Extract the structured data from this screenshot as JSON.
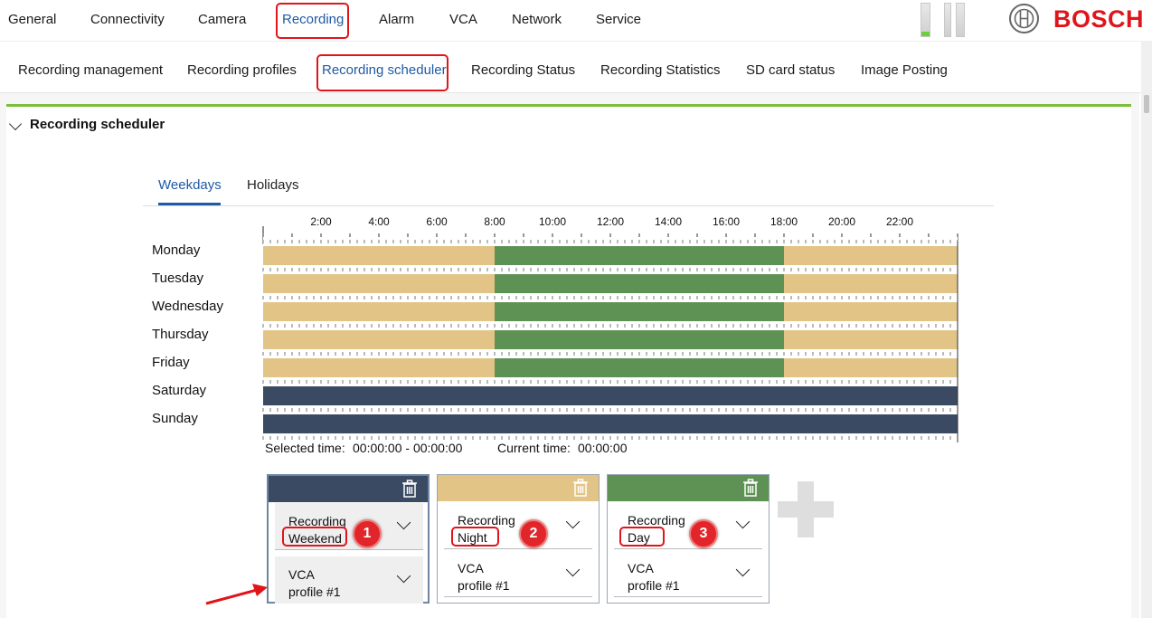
{
  "topnav": {
    "items": [
      "General",
      "Connectivity",
      "Camera",
      "Recording",
      "Alarm",
      "VCA",
      "Network",
      "Service"
    ],
    "active": "Recording"
  },
  "brand": {
    "name": "BOSCH",
    "color": "#e0151b"
  },
  "subnav": {
    "items": [
      "Recording management",
      "Recording profiles",
      "Recording scheduler",
      "Recording Status",
      "Recording Statistics",
      "SD card status",
      "Image Posting"
    ],
    "active": "Recording scheduler"
  },
  "section": {
    "title": "Recording scheduler"
  },
  "tabs": {
    "items": [
      "Weekdays",
      "Holidays"
    ],
    "active": "Weekdays"
  },
  "schedule": {
    "time_labels": [
      "2:00",
      "4:00",
      "6:00",
      "8:00",
      "10:00",
      "12:00",
      "14:00",
      "16:00",
      "18:00",
      "20:00",
      "22:00"
    ],
    "days": [
      {
        "name": "Monday",
        "segments": [
          {
            "start": 0,
            "end": 8,
            "profile": "night"
          },
          {
            "start": 8,
            "end": 18,
            "profile": "day"
          },
          {
            "start": 18,
            "end": 24,
            "profile": "night"
          }
        ]
      },
      {
        "name": "Tuesday",
        "segments": [
          {
            "start": 0,
            "end": 8,
            "profile": "night"
          },
          {
            "start": 8,
            "end": 18,
            "profile": "day"
          },
          {
            "start": 18,
            "end": 24,
            "profile": "night"
          }
        ]
      },
      {
        "name": "Wednesday",
        "segments": [
          {
            "start": 0,
            "end": 8,
            "profile": "night"
          },
          {
            "start": 8,
            "end": 18,
            "profile": "day"
          },
          {
            "start": 18,
            "end": 24,
            "profile": "night"
          }
        ]
      },
      {
        "name": "Thursday",
        "segments": [
          {
            "start": 0,
            "end": 8,
            "profile": "night"
          },
          {
            "start": 8,
            "end": 18,
            "profile": "day"
          },
          {
            "start": 18,
            "end": 24,
            "profile": "night"
          }
        ]
      },
      {
        "name": "Friday",
        "segments": [
          {
            "start": 0,
            "end": 8,
            "profile": "night"
          },
          {
            "start": 8,
            "end": 18,
            "profile": "day"
          },
          {
            "start": 18,
            "end": 24,
            "profile": "night"
          }
        ]
      },
      {
        "name": "Saturday",
        "segments": [
          {
            "start": 0,
            "end": 24,
            "profile": "weekend"
          }
        ]
      },
      {
        "name": "Sunday",
        "segments": [
          {
            "start": 0,
            "end": 24,
            "profile": "weekend"
          }
        ]
      }
    ],
    "selected_time_label": "Selected time:",
    "selected_time_value": "00:00:00 - 00:00:00",
    "current_time_label": "Current time:",
    "current_time_value": "00:00:00"
  },
  "colors": {
    "weekend": "#3a4a63",
    "night": "#e2c487",
    "day": "#5e9154",
    "accent": "#1f5aa6",
    "section_bar": "#7bbf3a"
  },
  "profiles": [
    {
      "key": "weekend",
      "badge": "1",
      "recording_label": "Recording",
      "recording_value": "Weekend",
      "vca_label": "VCA",
      "vca_value": "profile #1",
      "icon": "trash-icon"
    },
    {
      "key": "night",
      "badge": "2",
      "recording_label": "Recording",
      "recording_value": "Night",
      "vca_label": "VCA",
      "vca_value": "profile #1",
      "icon": "trash-icon"
    },
    {
      "key": "day",
      "badge": "3",
      "recording_label": "Recording",
      "recording_value": "Day",
      "vca_label": "VCA",
      "vca_value": "profile #1",
      "icon": "trash-icon"
    }
  ]
}
